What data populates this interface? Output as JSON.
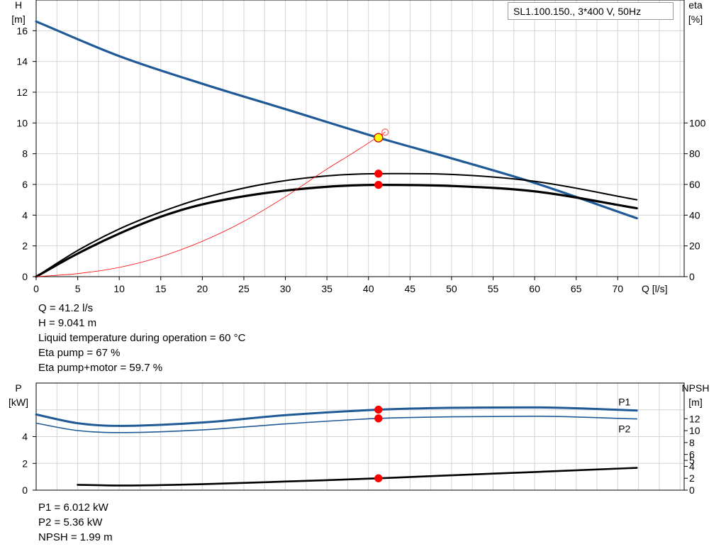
{
  "pump_name": "SL1.100.150., 3*400 V, 50Hz",
  "upper_info": [
    "Q = 41.2 l/s",
    "H = 9.041 m",
    "Liquid temperature during operation = 60 °C",
    "Eta pump = 67 %",
    "Eta pump+motor = 59.7 %"
  ],
  "lower_info": [
    "P1 = 6.012 kW",
    "P2 = 5.36 kW",
    "NPSH = 1.99 m"
  ],
  "colors": {
    "blue": "#1f5a96",
    "black": "#000000",
    "red": "#ff0000",
    "yellow": "#ffff00",
    "grid": "#d4d4d4"
  },
  "chart_data": [
    {
      "type": "line",
      "name": "head-efficiency",
      "xlabel": "Q [l/s]",
      "ylabel_left": [
        "H",
        "[m]"
      ],
      "ylabel_right": [
        "eta",
        "[%]"
      ],
      "xlim": [
        0,
        78
      ],
      "x_ticks": [
        0,
        5,
        10,
        15,
        20,
        25,
        30,
        35,
        40,
        45,
        50,
        55,
        60,
        65,
        70
      ],
      "y_left_lim": [
        0,
        18
      ],
      "y_left_ticks": [
        0,
        2,
        4,
        6,
        8,
        10,
        12,
        14,
        16
      ],
      "y_right_lim": [
        0,
        180
      ],
      "y_right_ticks": [
        0,
        20,
        40,
        60,
        80,
        100
      ],
      "grid": true,
      "series": [
        {
          "key": "H",
          "axis": "left",
          "color": "#1f5a96",
          "width": 3.2,
          "x": [
            0,
            10,
            20,
            30,
            41.2,
            50,
            60,
            72.3
          ],
          "y": [
            16.6,
            14.35,
            12.55,
            10.9,
            9.04,
            7.7,
            6.1,
            3.8
          ]
        },
        {
          "key": "eta-pump",
          "axis": "right",
          "color": "#000000",
          "width": 2,
          "x": [
            0,
            5,
            10,
            15,
            20,
            30,
            41.2,
            50,
            60,
            72.3
          ],
          "y": [
            0,
            17,
            31,
            42,
            51,
            62.5,
            67,
            66.5,
            62,
            50
          ]
        },
        {
          "key": "eta-pump-motor",
          "axis": "right",
          "color": "#000000",
          "width": 3.2,
          "x": [
            0,
            5,
            10,
            15,
            20,
            30,
            41.2,
            50,
            60,
            72.3
          ],
          "y": [
            0,
            15,
            28,
            39,
            47,
            56,
            59.7,
            59,
            55.5,
            44.5
          ]
        },
        {
          "key": "system-curve",
          "axis": "left",
          "color": "#ff0000",
          "width": 0.8,
          "x": [
            0,
            5,
            10,
            15,
            20,
            25,
            30,
            35,
            38,
            42
          ],
          "y": [
            0,
            0.2,
            0.6,
            1.3,
            2.3,
            3.6,
            5.2,
            7.0,
            8.0,
            9.4
          ]
        }
      ],
      "markers": [
        {
          "x": 41.2,
          "y": 9.04,
          "axis": "left",
          "fill": "#ffff00",
          "stroke": "#cc0000",
          "r": 6
        },
        {
          "x": 41.2,
          "y": 67,
          "axis": "right",
          "fill": "#ff0000",
          "stroke": "#ff0000",
          "r": 5
        },
        {
          "x": 41.2,
          "y": 59.7,
          "axis": "right",
          "fill": "#ff0000",
          "stroke": "#ff0000",
          "r": 5
        },
        {
          "x": 42,
          "y": 9.4,
          "axis": "left",
          "fill": "none",
          "stroke": "#ff6666",
          "r": 4.5
        }
      ]
    },
    {
      "type": "line",
      "name": "power-npsh",
      "ylabel_left": [
        "P",
        "[kW]"
      ],
      "ylabel_right": [
        "NPSH",
        "[m]"
      ],
      "xlim": [
        0,
        78
      ],
      "x_ticks": [
        0,
        5,
        10,
        15,
        20,
        25,
        30,
        35,
        40,
        45,
        50,
        55,
        60,
        65,
        70
      ],
      "y_left_lim": [
        0,
        8
      ],
      "y_left_ticks": [
        0,
        2,
        4
      ],
      "y_right_lim": [
        0,
        18
      ],
      "y_right_ticks": [
        0,
        2,
        4,
        5,
        6,
        8,
        10,
        12
      ],
      "grid": true,
      "series": [
        {
          "key": "P1",
          "name": "P1",
          "axis": "left",
          "color": "#1f5a96",
          "width": 3,
          "x": [
            0,
            5,
            10,
            20,
            30,
            41.2,
            50,
            60,
            72.3
          ],
          "y": [
            5.65,
            5.0,
            4.8,
            5.05,
            5.6,
            6.01,
            6.15,
            6.18,
            5.95
          ]
        },
        {
          "key": "P2",
          "name": "P2",
          "axis": "left",
          "color": "#1f5a96",
          "width": 1.6,
          "x": [
            0,
            5,
            10,
            20,
            30,
            41.2,
            50,
            60,
            72.3
          ],
          "y": [
            5.0,
            4.45,
            4.3,
            4.5,
            4.95,
            5.36,
            5.48,
            5.52,
            5.32
          ]
        },
        {
          "key": "NPSH",
          "axis": "right",
          "color": "#000000",
          "width": 2.6,
          "x": [
            5,
            10,
            20,
            30,
            41.2,
            50,
            60,
            72.3
          ],
          "y": [
            0.9,
            0.78,
            1.0,
            1.45,
            1.99,
            2.5,
            3.05,
            3.75
          ]
        }
      ],
      "markers": [
        {
          "x": 41.2,
          "y": 6.01,
          "axis": "left",
          "fill": "#ff0000",
          "stroke": "#ff0000",
          "r": 5
        },
        {
          "x": 41.2,
          "y": 5.36,
          "axis": "left",
          "fill": "#ff0000",
          "stroke": "#ff0000",
          "r": 5
        },
        {
          "x": 41.2,
          "y": 1.99,
          "axis": "right",
          "fill": "#ff0000",
          "stroke": "#ff0000",
          "r": 5
        }
      ]
    }
  ]
}
